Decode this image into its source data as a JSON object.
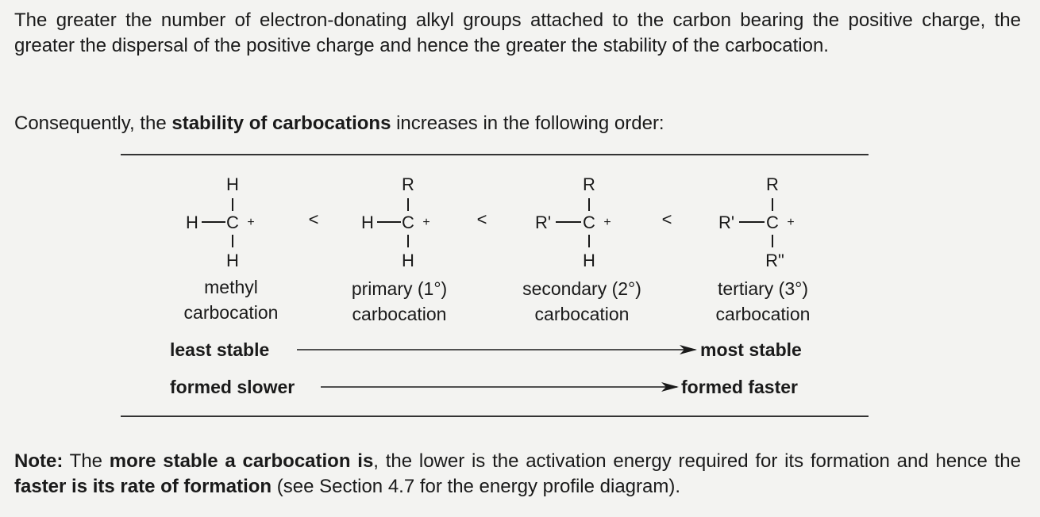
{
  "intro": {
    "text": "The greater the number of electron-donating alkyl groups attached to the carbon bearing the positive charge, the greater the dispersal of the positive charge and hence the greater the stability of the carbocation."
  },
  "order_sentence": {
    "pre": "Consequently, the ",
    "bold": "stability of carbocations",
    "post": " increases in the following order:"
  },
  "structures": [
    {
      "top": "H",
      "left": "H",
      "center": "C",
      "charge": "+",
      "bottom": "H",
      "name": "methyl",
      "sub": "carbocation"
    },
    {
      "top": "R",
      "left": "H",
      "center": "C",
      "charge": "+",
      "bottom": "H",
      "name": "primary (1°)",
      "sub": "carbocation"
    },
    {
      "top": "R",
      "left": "R'",
      "center": "C",
      "charge": "+",
      "bottom": "H",
      "name": "secondary (2°)",
      "sub": "carbocation"
    },
    {
      "top": "R",
      "left": "R'",
      "center": "C",
      "charge": "+",
      "bottom": "R\"",
      "name": "tertiary (3°)",
      "sub": "carbocation"
    }
  ],
  "less_than": "<",
  "arrows": {
    "stability_left": "least stable",
    "stability_right": "most stable",
    "rate_left": "formed slower",
    "rate_right": "formed faster"
  },
  "note": {
    "label": "Note:",
    "t1": " The ",
    "b1": "more stable a carbocation is",
    "t2": ", the lower is the activation energy required for its formation and hence the ",
    "b2": "faster is its rate of formation",
    "t3": " (see Section 4.7 for the energy profile diagram)."
  }
}
